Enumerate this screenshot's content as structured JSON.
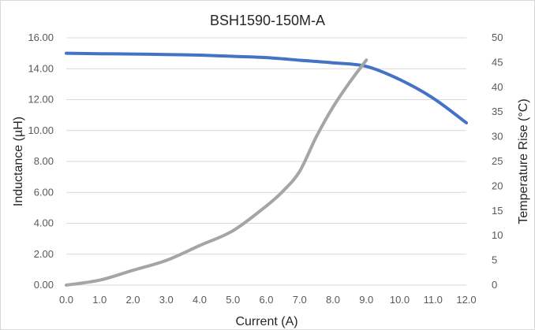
{
  "chart_data": {
    "type": "line",
    "title": "BSH1590-150M-A",
    "xlabel": "Current (A)",
    "ylabel": "Inductance (µH)",
    "y2label": "Temperature Rise (°C)",
    "xlim": [
      0,
      12
    ],
    "ylim": [
      0,
      16
    ],
    "y2lim": [
      0,
      50
    ],
    "x_ticks": [
      "0.0",
      "1.0",
      "2.0",
      "3.0",
      "4.0",
      "5.0",
      "6.0",
      "7.0",
      "8.0",
      "9.0",
      "10.0",
      "11.0",
      "12.0"
    ],
    "y_ticks": [
      "0.00",
      "2.00",
      "4.00",
      "6.00",
      "8.00",
      "10.00",
      "12.00",
      "14.00",
      "16.00"
    ],
    "y2_ticks": [
      "0",
      "5",
      "10",
      "15",
      "20",
      "25",
      "30",
      "35",
      "40",
      "45",
      "50"
    ],
    "grid": "horizontal",
    "legend": "none",
    "series": [
      {
        "axis": "left",
        "color": "#4472C4",
        "points": [
          [
            0,
            15.0
          ],
          [
            1,
            14.97
          ],
          [
            2,
            14.95
          ],
          [
            3,
            14.92
          ],
          [
            4,
            14.88
          ],
          [
            5,
            14.8
          ],
          [
            6,
            14.72
          ],
          [
            7,
            14.55
          ],
          [
            8,
            14.38
          ],
          [
            9,
            14.15
          ],
          [
            10,
            13.3
          ],
          [
            11,
            12.1
          ],
          [
            12,
            10.5
          ]
        ]
      },
      {
        "axis": "right",
        "color": "#A5A5A5",
        "points": [
          [
            0,
            0
          ],
          [
            1,
            1
          ],
          [
            2,
            3
          ],
          [
            3,
            5
          ],
          [
            4,
            8
          ],
          [
            5,
            11
          ],
          [
            6,
            16
          ],
          [
            6.5,
            19
          ],
          [
            7,
            23
          ],
          [
            7.5,
            30
          ],
          [
            8,
            36
          ],
          [
            8.5,
            41
          ],
          [
            9,
            45.5
          ]
        ]
      }
    ]
  }
}
